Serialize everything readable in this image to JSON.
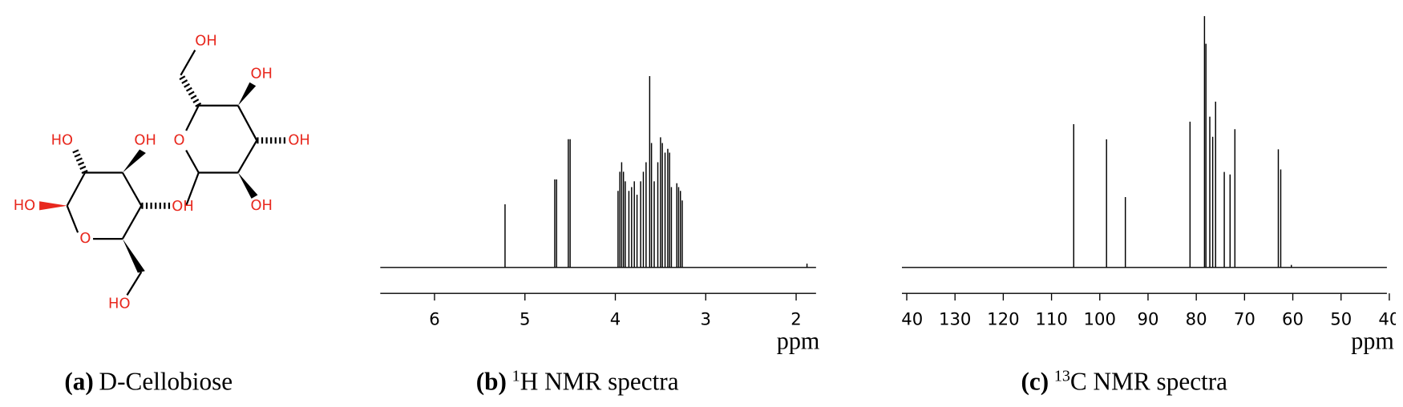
{
  "molecule": {
    "atoms": [
      "OH",
      "OH",
      "OH",
      "O",
      "OH",
      "OH",
      "HO",
      "OH",
      "HO",
      "O",
      "O",
      "HO"
    ]
  },
  "captions": [
    {
      "label": "(a)",
      "text": "D-Cellobiose"
    },
    {
      "label": "(b)",
      "sup": "1",
      "text": "H NMR spectra"
    },
    {
      "label": "(c)",
      "sup": "13",
      "text": "C NMR spectra"
    }
  ],
  "chart_data": [
    {
      "type": "spectrum",
      "x_label": "ppm",
      "xlim": [
        6.6,
        1.78
      ],
      "xticks": [
        6,
        5,
        4,
        3,
        2
      ],
      "ylim": [
        0,
        100
      ],
      "color": "#000000",
      "x": [
        5.22,
        4.67,
        4.65,
        4.52,
        4.5,
        3.97,
        3.95,
        3.93,
        3.91,
        3.89,
        3.85,
        3.82,
        3.79,
        3.76,
        3.72,
        3.69,
        3.66,
        3.62,
        3.6,
        3.57,
        3.53,
        3.5,
        3.48,
        3.45,
        3.42,
        3.4,
        3.38,
        3.32,
        3.3,
        3.28,
        3.26,
        1.88
      ],
      "values": [
        33,
        46,
        46,
        67,
        67,
        40,
        50,
        55,
        50,
        45,
        40,
        42,
        45,
        38,
        45,
        50,
        55,
        100,
        65,
        45,
        55,
        68,
        65,
        60,
        62,
        60,
        42,
        44,
        42,
        40,
        35,
        2
      ]
    },
    {
      "type": "spectrum",
      "x_label": "ppm",
      "xlim": [
        141,
        40.5
      ],
      "xticks": [
        140,
        130,
        120,
        110,
        100,
        90,
        80,
        70,
        60,
        50,
        40
      ],
      "ylim": [
        0,
        100
      ],
      "color": "#000000",
      "x": [
        105.4,
        98.6,
        94.7,
        81.3,
        78.3,
        78.0,
        77.2,
        76.6,
        76.0,
        74.2,
        73.0,
        72.0,
        63.0,
        62.5,
        60.3
      ],
      "values": [
        57,
        51,
        28,
        58,
        100,
        89,
        60,
        52,
        66,
        38,
        37,
        55,
        47,
        39,
        1
      ]
    }
  ]
}
